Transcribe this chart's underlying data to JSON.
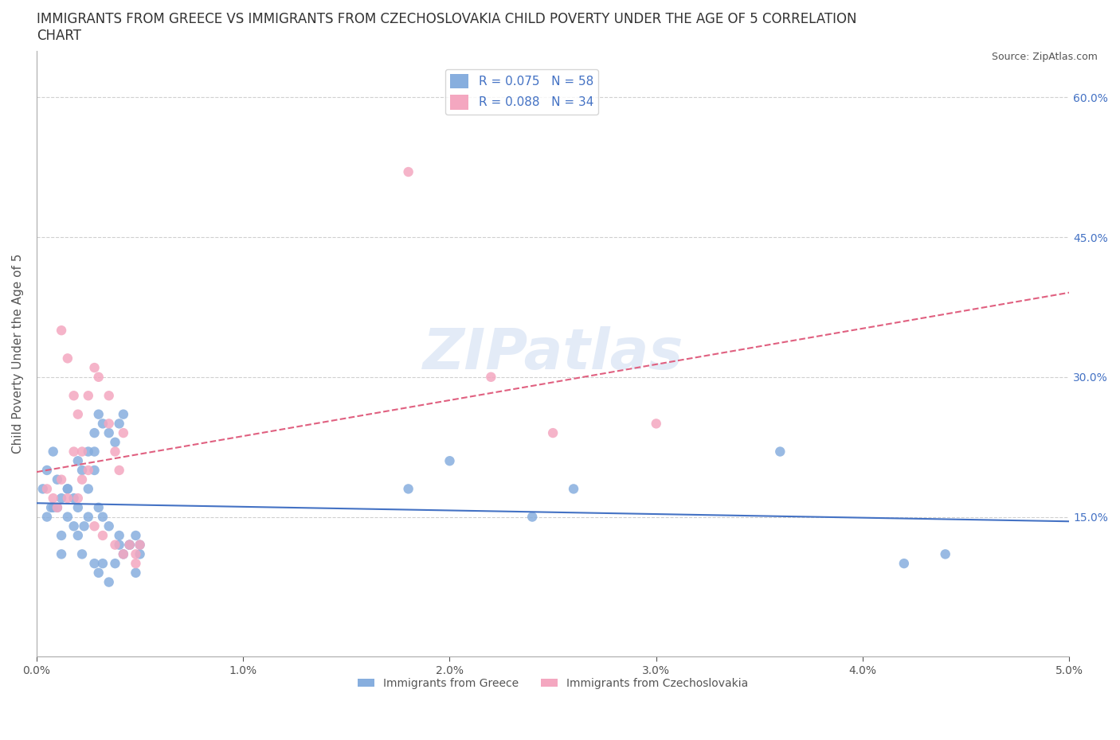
{
  "title": "IMMIGRANTS FROM GREECE VS IMMIGRANTS FROM CZECHOSLOVAKIA CHILD POVERTY UNDER THE AGE OF 5 CORRELATION\nCHART",
  "source": "Source: ZipAtlas.com",
  "xlabel": "",
  "ylabel": "Child Poverty Under the Age of 5",
  "xlim": [
    0.0,
    0.05
  ],
  "ylim": [
    0.0,
    0.65
  ],
  "xticks": [
    0.0,
    0.01,
    0.02,
    0.03,
    0.04,
    0.05
  ],
  "xticklabels": [
    "0.0%",
    "1.0%",
    "2.0%",
    "3.0%",
    "4.0%",
    "5.0%"
  ],
  "ytick_positions": [
    0.15,
    0.3,
    0.45,
    0.6
  ],
  "ytick_right_labels": [
    "15.0%",
    "30.0%",
    "45.0%",
    "60.0%"
  ],
  "R_greece": 0.075,
  "N_greece": 58,
  "R_czech": 0.088,
  "N_czech": 34,
  "color_greece": "#87AEDE",
  "color_czech": "#F4A7C0",
  "line_color_greece": "#4472C4",
  "line_color_czech": "#E06080",
  "background_color": "#FFFFFF",
  "grid_color": "#D0D0D0",
  "watermark": "ZIPatlas",
  "greece_x": [
    0.0008,
    0.0003,
    0.0005,
    0.001,
    0.0007,
    0.0012,
    0.0005,
    0.0015,
    0.0018,
    0.002,
    0.0025,
    0.0022,
    0.0028,
    0.003,
    0.0028,
    0.0032,
    0.0035,
    0.0038,
    0.004,
    0.0042,
    0.0012,
    0.0015,
    0.0018,
    0.002,
    0.0023,
    0.0025,
    0.003,
    0.0032,
    0.0035,
    0.004,
    0.0045,
    0.0048,
    0.005,
    0.002,
    0.0025,
    0.0028,
    0.0015,
    0.001,
    0.0022,
    0.0032,
    0.0038,
    0.0042,
    0.0045,
    0.005,
    0.0048,
    0.0035,
    0.003,
    0.0028,
    0.0012,
    0.0008,
    0.004,
    0.036,
    0.024,
    0.026,
    0.018,
    0.02,
    0.042,
    0.044
  ],
  "greece_y": [
    0.22,
    0.18,
    0.2,
    0.19,
    0.16,
    0.17,
    0.15,
    0.18,
    0.17,
    0.16,
    0.18,
    0.2,
    0.24,
    0.26,
    0.22,
    0.25,
    0.24,
    0.23,
    0.25,
    0.26,
    0.13,
    0.15,
    0.14,
    0.13,
    0.14,
    0.15,
    0.16,
    0.15,
    0.14,
    0.13,
    0.12,
    0.13,
    0.12,
    0.21,
    0.22,
    0.2,
    0.18,
    0.16,
    0.11,
    0.1,
    0.1,
    0.11,
    0.12,
    0.11,
    0.09,
    0.08,
    0.09,
    0.1,
    0.11,
    0.16,
    0.12,
    0.22,
    0.15,
    0.18,
    0.18,
    0.21,
    0.1,
    0.11
  ],
  "czech_x": [
    0.0005,
    0.0008,
    0.001,
    0.0012,
    0.0015,
    0.0018,
    0.002,
    0.0022,
    0.0025,
    0.0028,
    0.003,
    0.0035,
    0.0038,
    0.004,
    0.0042,
    0.0045,
    0.0048,
    0.005,
    0.0012,
    0.0015,
    0.0018,
    0.0022,
    0.0028,
    0.0032,
    0.0038,
    0.0042,
    0.0048,
    0.002,
    0.0025,
    0.0035,
    0.025,
    0.03,
    0.018,
    0.022
  ],
  "czech_y": [
    0.18,
    0.17,
    0.16,
    0.19,
    0.17,
    0.28,
    0.26,
    0.22,
    0.2,
    0.31,
    0.3,
    0.25,
    0.22,
    0.2,
    0.24,
    0.12,
    0.11,
    0.12,
    0.35,
    0.32,
    0.22,
    0.19,
    0.14,
    0.13,
    0.12,
    0.11,
    0.1,
    0.17,
    0.28,
    0.28,
    0.24,
    0.25,
    0.52,
    0.3
  ],
  "legend_greece": "Immigrants from Greece",
  "legend_czech": "Immigrants from Czechoslovakia"
}
